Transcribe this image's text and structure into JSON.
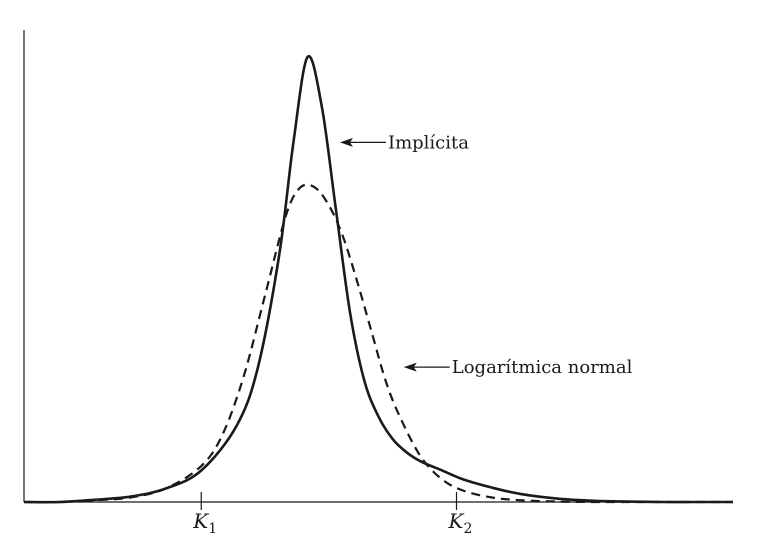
{
  "chart_data": {
    "type": "line",
    "title": "",
    "xlabel": "",
    "ylabel": "",
    "grid": false,
    "xlim": [
      0,
      10
    ],
    "ylim": [
      0,
      1.05
    ],
    "x_ticks": [
      {
        "value": 2.5,
        "label": "K",
        "sub": "1"
      },
      {
        "value": 6.1,
        "label": "K",
        "sub": "2"
      }
    ],
    "series": [
      {
        "id": "implied",
        "style": "solid",
        "x": [
          0,
          0.5,
          1.0,
          1.5,
          2.0,
          2.5,
          3.0,
          3.3,
          3.6,
          3.8,
          4.0,
          4.2,
          4.4,
          4.6,
          4.8,
          5.0,
          5.2,
          5.4,
          5.6,
          5.9,
          6.2,
          6.6,
          7.0,
          7.5,
          8.0,
          8.5,
          9.0,
          9.5,
          10.0
        ],
        "y": [
          0.0,
          0.0,
          0.005,
          0.012,
          0.03,
          0.07,
          0.17,
          0.3,
          0.55,
          0.8,
          0.99,
          0.88,
          0.65,
          0.42,
          0.27,
          0.19,
          0.14,
          0.11,
          0.09,
          0.07,
          0.05,
          0.032,
          0.018,
          0.008,
          0.003,
          0.001,
          0.0,
          0.0,
          0.0
        ]
      },
      {
        "id": "lognormal",
        "style": "dashed",
        "x": [
          0,
          0.5,
          1.0,
          1.5,
          2.0,
          2.5,
          2.8,
          3.1,
          3.4,
          3.7,
          3.9,
          4.1,
          4.3,
          4.5,
          4.7,
          4.9,
          5.1,
          5.3,
          5.6,
          5.9,
          6.2,
          6.6,
          7.0,
          7.5,
          8.0,
          8.5,
          9.0,
          9.5,
          10.0
        ],
        "y": [
          0.0,
          0.0,
          0.004,
          0.01,
          0.03,
          0.08,
          0.15,
          0.28,
          0.46,
          0.64,
          0.7,
          0.7,
          0.66,
          0.59,
          0.49,
          0.38,
          0.27,
          0.19,
          0.1,
          0.05,
          0.025,
          0.01,
          0.004,
          0.001,
          0.0,
          0.0,
          0.0,
          0.0,
          0.0
        ]
      }
    ],
    "annotations": [
      {
        "text": "Implícita",
        "series": "implied",
        "point_x": 4.4,
        "point_y": 0.8
      },
      {
        "text": "Logarítmica normal",
        "series": "lognormal",
        "point_x": 5.3,
        "point_y": 0.3
      }
    ]
  }
}
